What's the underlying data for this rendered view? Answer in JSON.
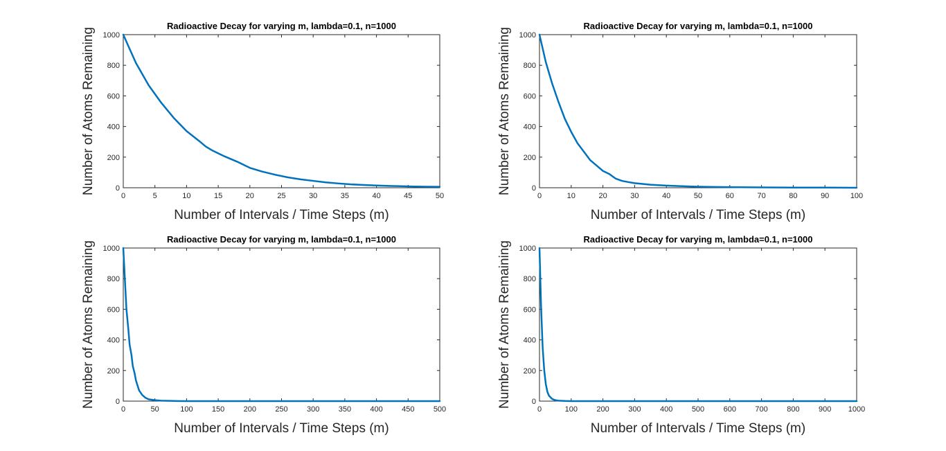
{
  "chart_data": [
    {
      "type": "line",
      "title": "Radioactive Decay for varying m,  lambda=0.1, n=1000",
      "xlabel": "Number of Intervals / Time Steps (m)",
      "ylabel": "Number of Atoms Remaining",
      "xlim": [
        0,
        50
      ],
      "ylim": [
        0,
        1000
      ],
      "xticks": [
        0,
        5,
        10,
        15,
        20,
        25,
        30,
        35,
        40,
        45,
        50
      ],
      "yticks": [
        0,
        200,
        400,
        600,
        800,
        1000
      ],
      "grid": false,
      "series": [
        {
          "color": "#0072BD",
          "x": [
            0,
            2,
            4,
            6,
            8,
            10,
            12,
            13,
            14,
            16,
            18,
            20,
            22,
            24,
            26,
            28,
            30,
            32,
            34,
            36,
            38,
            40,
            42,
            44,
            46,
            48,
            50
          ],
          "y": [
            1000,
            815,
            670,
            555,
            455,
            370,
            305,
            270,
            245,
            205,
            170,
            130,
            105,
            85,
            68,
            55,
            45,
            35,
            28,
            22,
            18,
            15,
            12,
            10,
            8,
            7,
            6
          ]
        }
      ]
    },
    {
      "type": "line",
      "title": "Radioactive Decay for varying m,  lambda=0.1, n=1000",
      "xlabel": "Number of Intervals / Time Steps (m)",
      "ylabel": "Number of Atoms Remaining",
      "xlim": [
        0,
        100
      ],
      "ylim": [
        0,
        1000
      ],
      "xticks": [
        0,
        10,
        20,
        30,
        40,
        50,
        60,
        70,
        80,
        90,
        100
      ],
      "yticks": [
        0,
        200,
        400,
        600,
        800,
        1000
      ],
      "grid": false,
      "series": [
        {
          "color": "#0072BD",
          "x": [
            0,
            2,
            4,
            6,
            8,
            10,
            12,
            14,
            16,
            18,
            20,
            22,
            24,
            26,
            28,
            30,
            35,
            40,
            45,
            50,
            60,
            70,
            80,
            90,
            100
          ],
          "y": [
            1000,
            820,
            680,
            560,
            450,
            365,
            290,
            235,
            180,
            145,
            110,
            90,
            60,
            45,
            37,
            30,
            20,
            14,
            10,
            7,
            4,
            2,
            1,
            1,
            0
          ]
        }
      ]
    },
    {
      "type": "line",
      "title": "Radioactive Decay for varying m,  lambda=0.1, n=1000",
      "xlabel": "Number of Intervals / Time Steps (m)",
      "ylabel": "Number of Atoms Remaining",
      "xlim": [
        0,
        500
      ],
      "ylim": [
        0,
        1000
      ],
      "xticks": [
        0,
        50,
        100,
        150,
        200,
        250,
        300,
        350,
        400,
        450,
        500
      ],
      "yticks": [
        0,
        200,
        400,
        600,
        800,
        1000
      ],
      "grid": false,
      "series": [
        {
          "color": "#0072BD",
          "x": [
            0,
            3,
            5,
            8,
            10,
            13,
            15,
            18,
            20,
            25,
            30,
            35,
            40,
            50,
            60,
            80,
            100,
            150,
            200,
            300,
            400,
            500
          ],
          "y": [
            1000,
            760,
            600,
            470,
            370,
            300,
            230,
            180,
            135,
            70,
            40,
            22,
            12,
            6,
            3,
            1,
            0,
            0,
            0,
            0,
            0,
            0
          ]
        }
      ]
    },
    {
      "type": "line",
      "title": "Radioactive Decay for varying m,  lambda=0.1, n=1000",
      "xlabel": "Number of Intervals / Time Steps (m)",
      "ylabel": "Number of Atoms Remaining",
      "xlim": [
        0,
        1000
      ],
      "ylim": [
        0,
        1000
      ],
      "xticks": [
        0,
        100,
        200,
        300,
        400,
        500,
        600,
        700,
        800,
        900,
        1000
      ],
      "yticks": [
        0,
        200,
        400,
        600,
        800,
        1000
      ],
      "grid": false,
      "series": [
        {
          "color": "#0072BD",
          "x": [
            0,
            5,
            10,
            15,
            20,
            25,
            30,
            40,
            50,
            60,
            80,
            100,
            150,
            200,
            300,
            500,
            700,
            1000
          ],
          "y": [
            1000,
            620,
            350,
            200,
            110,
            60,
            35,
            14,
            6,
            3,
            1,
            0,
            0,
            0,
            0,
            0,
            0,
            0
          ]
        }
      ]
    }
  ]
}
